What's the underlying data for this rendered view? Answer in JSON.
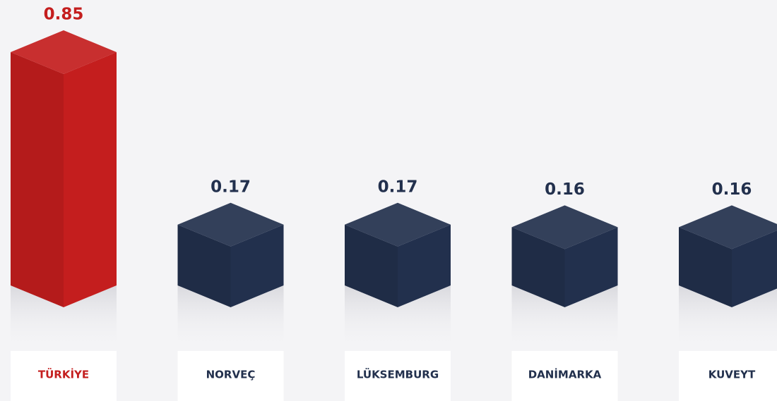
{
  "chart_data": {
    "type": "bar",
    "categories": [
      "TÜRKİYE",
      "NORVEÇ",
      "LÜKSEMBURG",
      "DANİMARKA",
      "KUVEYT"
    ],
    "values": [
      0.85,
      0.17,
      0.17,
      0.16,
      0.16
    ],
    "colors": [
      "#c41e1e",
      "#22304d",
      "#22304d",
      "#22304d",
      "#22304d"
    ]
  }
}
